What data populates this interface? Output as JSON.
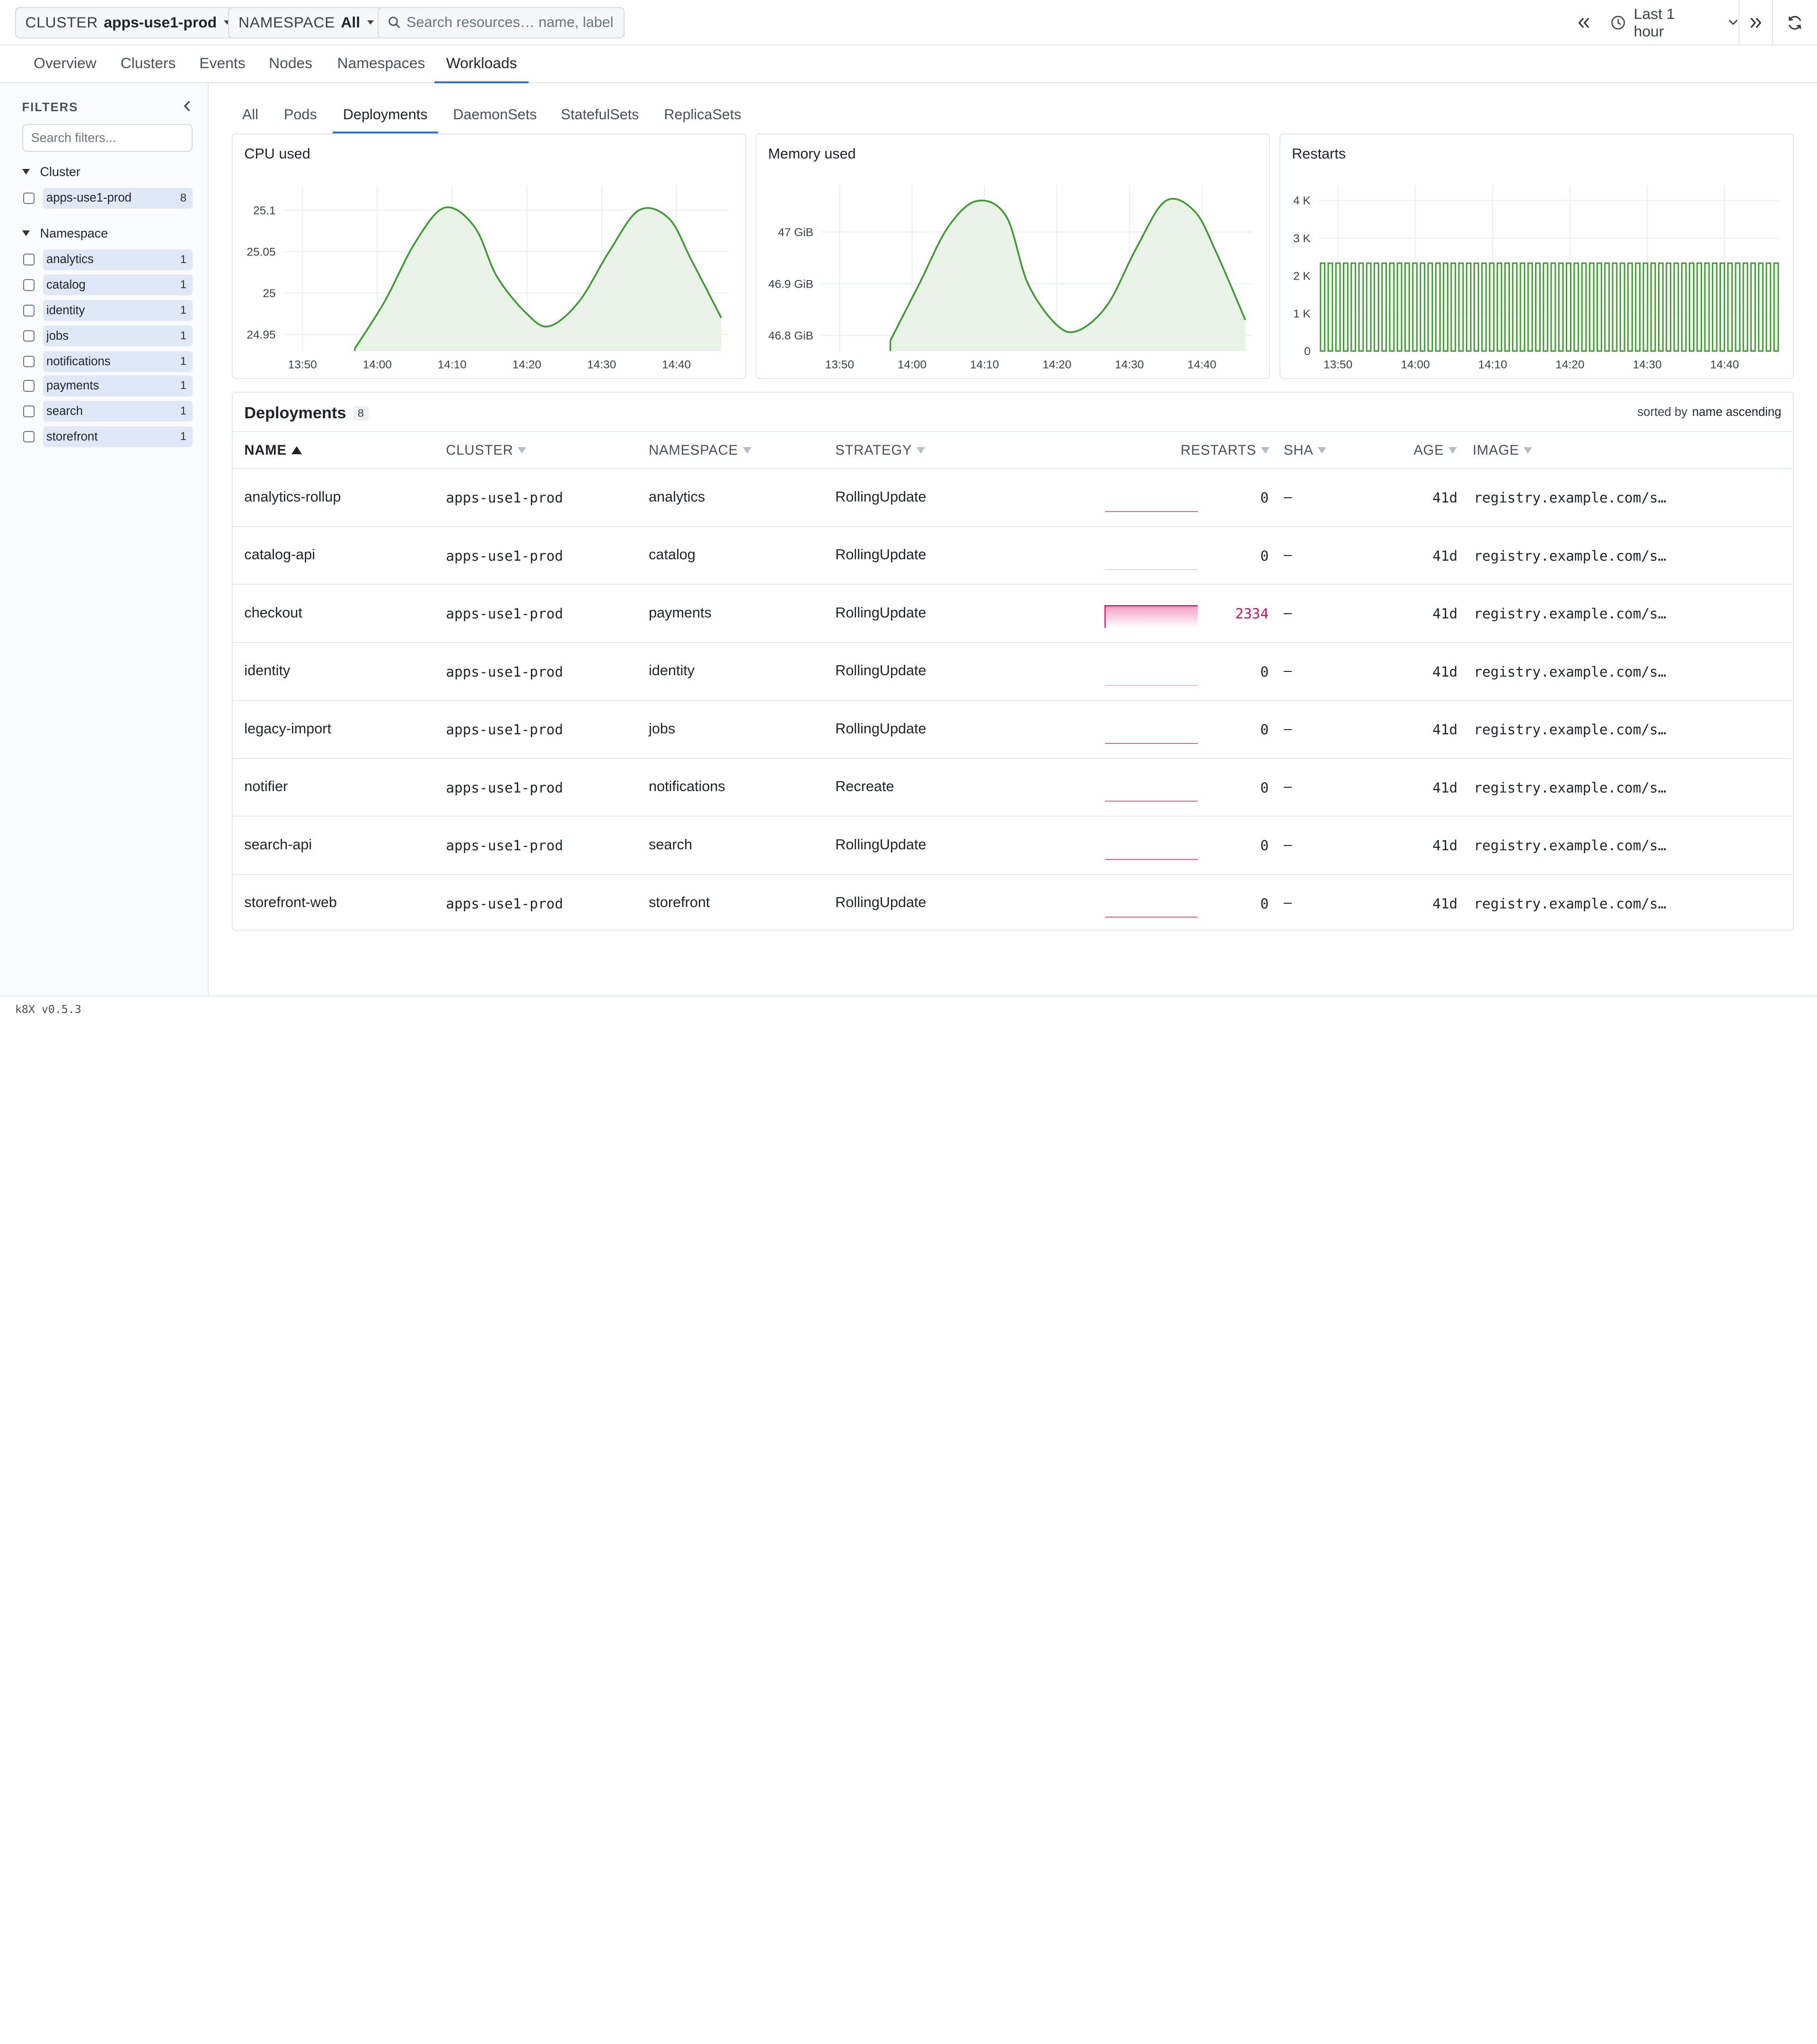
{
  "topbar": {
    "cluster_label": "CLUSTER",
    "cluster_value": "apps-use1-prod",
    "namespace_label": "NAMESPACE",
    "namespace_value": "All",
    "search_placeholder": "Search resources… name, label",
    "time_range": "Last 1 hour",
    "icons": [
      "search-icon",
      "clock-icon",
      "chevrons-left-icon",
      "chevrons-right-icon",
      "refresh-icon"
    ]
  },
  "nav": {
    "tabs": [
      "Overview",
      "Clusters",
      "Events",
      "Nodes",
      "Namespaces",
      "Workloads"
    ],
    "active": "Workloads"
  },
  "sidebar": {
    "title": "FILTERS",
    "search_placeholder": "Search filters...",
    "groups": [
      {
        "label": "Cluster",
        "items": [
          {
            "label": "apps-use1-prod",
            "count": "8"
          }
        ]
      },
      {
        "label": "Namespace",
        "items": [
          {
            "label": "analytics",
            "count": "1"
          },
          {
            "label": "catalog",
            "count": "1"
          },
          {
            "label": "identity",
            "count": "1"
          },
          {
            "label": "jobs",
            "count": "1"
          },
          {
            "label": "notifications",
            "count": "1"
          },
          {
            "label": "payments",
            "count": "1"
          },
          {
            "label": "search",
            "count": "1"
          },
          {
            "label": "storefront",
            "count": "1"
          }
        ]
      }
    ]
  },
  "subtabs": {
    "tabs": [
      "All",
      "Pods",
      "Deployments",
      "DaemonSets",
      "StatefulSets",
      "ReplicaSets"
    ],
    "active": "Deployments"
  },
  "colors": {
    "accent": "#2f6fd6",
    "chart_line": "#3f9a33",
    "chart_fill": "#eaf3e7",
    "restarts_hot": "#c8175d",
    "sidebar_chip": "#dfe8f6"
  },
  "chart_data": [
    {
      "type": "area",
      "title": "CPU used",
      "x_ticks": [
        "13:50",
        "14:00",
        "14:10",
        "14:20",
        "14:30",
        "14:40"
      ],
      "y_ticks": [
        "24.95",
        "25",
        "25.05",
        "25.1"
      ],
      "ylim": [
        24.93,
        25.13
      ],
      "x_range_min": [
        -3,
        46
      ],
      "x": [
        -3,
        1,
        5,
        9,
        13,
        16,
        20,
        23,
        27,
        31,
        35,
        39,
        42,
        46
      ],
      "y": [
        24.933,
        24.99,
        25.06,
        25.103,
        25.08,
        25.02,
        24.975,
        24.96,
        24.99,
        25.05,
        25.1,
        25.09,
        25.04,
        24.97
      ],
      "grid": true
    },
    {
      "type": "area",
      "title": "Memory used",
      "x_ticks": [
        "13:50",
        "14:00",
        "14:10",
        "14:20",
        "14:30",
        "14:40"
      ],
      "y_ticks": [
        "46.8 GiB",
        "46.9 GiB",
        "47 GiB"
      ],
      "ylim": [
        46.77,
        47.09
      ],
      "x_range_min": [
        -3,
        46
      ],
      "x": [
        -3,
        1,
        5,
        9,
        13,
        16,
        20,
        23,
        27,
        31,
        35,
        39,
        42,
        46
      ],
      "y": [
        46.79,
        46.9,
        47.01,
        47.06,
        47.03,
        46.9,
        46.82,
        46.81,
        46.86,
        46.97,
        47.06,
        47.04,
        46.96,
        46.83
      ],
      "grid": true
    },
    {
      "type": "bar",
      "title": "Restarts",
      "x_ticks": [
        "13:50",
        "14:00",
        "14:10",
        "14:20",
        "14:30",
        "14:40"
      ],
      "y_ticks": [
        "0",
        "1 K",
        "2 K",
        "3 K",
        "4 K"
      ],
      "ylim": [
        0,
        4400
      ],
      "bar_count": 60,
      "bar_value": 2334,
      "grid": true
    }
  ],
  "table": {
    "title": "Deployments",
    "count": "8",
    "sort_prefix": "sorted by",
    "sort_value": "name ascending",
    "columns": [
      "NAME",
      "CLUSTER",
      "NAMESPACE",
      "STRATEGY",
      "RESTARTS",
      "SHA",
      "AGE",
      "IMAGE"
    ],
    "rows": [
      {
        "name": "analytics-rollup",
        "cluster": "apps-use1-prod",
        "namespace": "analytics",
        "strategy": "RollingUpdate",
        "restarts": "0",
        "sha": "–",
        "age": "41d",
        "image": "registry.example.com/s…"
      },
      {
        "name": "catalog-api",
        "cluster": "apps-use1-prod",
        "namespace": "catalog",
        "strategy": "RollingUpdate",
        "restarts": "0",
        "sha": "–",
        "age": "41d",
        "image": "registry.example.com/s…"
      },
      {
        "name": "checkout",
        "cluster": "apps-use1-prod",
        "namespace": "payments",
        "strategy": "RollingUpdate",
        "restarts": "2334",
        "sha": "–",
        "age": "41d",
        "image": "registry.example.com/s…"
      },
      {
        "name": "identity",
        "cluster": "apps-use1-prod",
        "namespace": "identity",
        "strategy": "RollingUpdate",
        "restarts": "0",
        "sha": "–",
        "age": "41d",
        "image": "registry.example.com/s…"
      },
      {
        "name": "legacy-import",
        "cluster": "apps-use1-prod",
        "namespace": "jobs",
        "strategy": "RollingUpdate",
        "restarts": "0",
        "sha": "–",
        "age": "41d",
        "image": "registry.example.com/s…"
      },
      {
        "name": "notifier",
        "cluster": "apps-use1-prod",
        "namespace": "notifications",
        "strategy": "Recreate",
        "restarts": "0",
        "sha": "–",
        "age": "41d",
        "image": "registry.example.com/s…"
      },
      {
        "name": "search-api",
        "cluster": "apps-use1-prod",
        "namespace": "search",
        "strategy": "RollingUpdate",
        "restarts": "0",
        "sha": "–",
        "age": "41d",
        "image": "registry.example.com/s…"
      },
      {
        "name": "storefront-web",
        "cluster": "apps-use1-prod",
        "namespace": "storefront",
        "strategy": "RollingUpdate",
        "restarts": "0",
        "sha": "–",
        "age": "41d",
        "image": "registry.example.com/s…"
      }
    ]
  },
  "footer": {
    "version": "k8X v0.5.3"
  }
}
